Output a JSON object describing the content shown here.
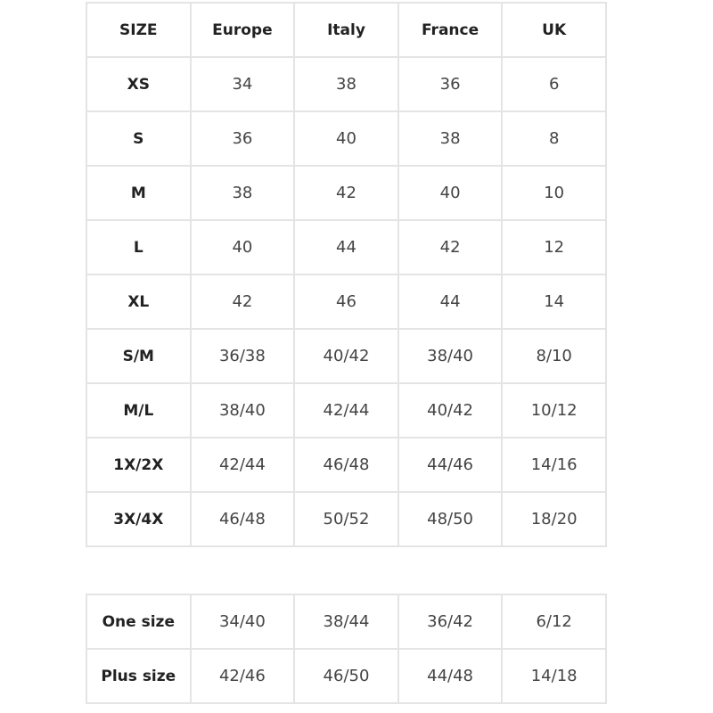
{
  "headers": [
    "SIZE",
    "Europe",
    "Italy",
    "France",
    "UK"
  ],
  "rows": [
    [
      "XS",
      "34",
      "38",
      "36",
      "6"
    ],
    [
      "S",
      "36",
      "40",
      "38",
      "8"
    ],
    [
      "M",
      "38",
      "42",
      "40",
      "10"
    ],
    [
      "L",
      "40",
      "44",
      "42",
      "12"
    ],
    [
      "XL",
      "42",
      "46",
      "44",
      "14"
    ],
    [
      "S/M",
      "36/38",
      "40/42",
      "38/40",
      "8/10"
    ],
    [
      "M/L",
      "38/40",
      "42/44",
      "40/42",
      "10/12"
    ],
    [
      "1X/2X",
      "42/44",
      "46/48",
      "44/46",
      "14/16"
    ],
    [
      "3X/4X",
      "46/48",
      "50/52",
      "48/50",
      "18/20"
    ]
  ],
  "extra_rows": [
    [
      "One size",
      "34/40",
      "38/44",
      "36/42",
      "6/12"
    ],
    [
      "Plus size",
      "42/46",
      "46/50",
      "44/48",
      "14/18"
    ]
  ],
  "colors": {
    "border": "#e4e4e4",
    "text": "#444444"
  }
}
